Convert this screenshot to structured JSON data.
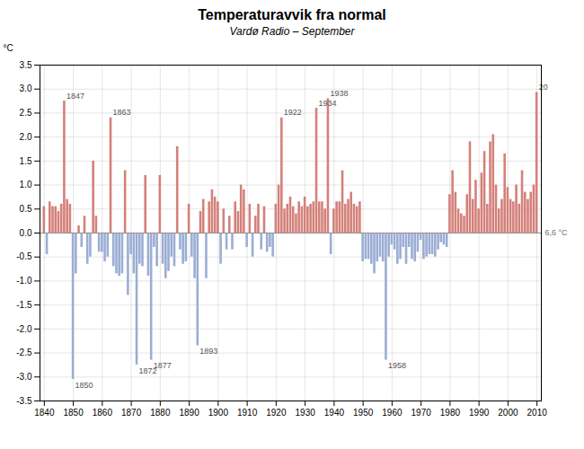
{
  "chart_data": {
    "type": "bar",
    "title": "Temperaturavvik fra normal",
    "subtitle": "Vardø Radio – September",
    "ylabel": "°C",
    "xlim": [
      1838.5,
      2011.5
    ],
    "ylim": [
      -3.5,
      3.5
    ],
    "xticks": [
      1840,
      1850,
      1860,
      1870,
      1880,
      1890,
      1900,
      1910,
      1920,
      1930,
      1940,
      1950,
      1960,
      1970,
      1980,
      1990,
      2000,
      2010
    ],
    "yticks": [
      -3.5,
      {
        "value": -3.0,
        "label": "-3.0"
      },
      -2.5,
      {
        "value": -2.0,
        "label": "-2.0"
      },
      -1.5,
      {
        "value": -1.0,
        "label": "-1.0"
      },
      -0.5,
      {
        "value": 0.0,
        "label": "0.0"
      },
      0.5,
      {
        "value": 1.0,
        "label": "1.0"
      },
      1.5,
      {
        "value": 2.0,
        "label": "2.0"
      },
      2.5,
      {
        "value": 3.0,
        "label": "3.0"
      },
      3.5
    ],
    "grid": true,
    "x": [
      1840,
      1841,
      1842,
      1843,
      1844,
      1845,
      1846,
      1847,
      1848,
      1849,
      1850,
      1851,
      1852,
      1853,
      1854,
      1855,
      1856,
      1857,
      1858,
      1859,
      1860,
      1861,
      1862,
      1863,
      1864,
      1865,
      1866,
      1867,
      1868,
      1869,
      1870,
      1871,
      1872,
      1873,
      1874,
      1875,
      1876,
      1877,
      1878,
      1879,
      1880,
      1881,
      1882,
      1883,
      1884,
      1885,
      1886,
      1887,
      1888,
      1889,
      1890,
      1891,
      1892,
      1893,
      1894,
      1895,
      1896,
      1897,
      1898,
      1899,
      1900,
      1901,
      1902,
      1903,
      1904,
      1905,
      1906,
      1907,
      1908,
      1909,
      1910,
      1911,
      1912,
      1913,
      1914,
      1915,
      1916,
      1917,
      1918,
      1919,
      1920,
      1921,
      1922,
      1923,
      1924,
      1925,
      1926,
      1927,
      1928,
      1929,
      1930,
      1931,
      1932,
      1933,
      1934,
      1935,
      1936,
      1937,
      1938,
      1939,
      1940,
      1941,
      1942,
      1943,
      1944,
      1945,
      1946,
      1947,
      1948,
      1949,
      1950,
      1951,
      1952,
      1953,
      1954,
      1955,
      1956,
      1957,
      1958,
      1959,
      1960,
      1961,
      1962,
      1963,
      1964,
      1965,
      1966,
      1967,
      1968,
      1969,
      1970,
      1971,
      1972,
      1973,
      1974,
      1975,
      1976,
      1977,
      1978,
      1979,
      1980,
      1981,
      1982,
      1983,
      1984,
      1985,
      1986,
      1987,
      1988,
      1989,
      1990,
      1991,
      1992,
      1993,
      1994,
      1995,
      1996,
      1997,
      1998,
      1999,
      2000,
      2001,
      2002,
      2003,
      2004,
      2005,
      2006,
      2007,
      2008,
      2009,
      2010
    ],
    "values": [
      0.55,
      -0.45,
      0.65,
      0.55,
      0.55,
      0.45,
      0.6,
      2.75,
      0.7,
      0.6,
      -3.05,
      -0.85,
      0.15,
      -0.3,
      0.35,
      -0.65,
      -0.5,
      1.5,
      0.35,
      -0.4,
      -0.4,
      -0.6,
      -0.5,
      2.4,
      -0.7,
      -0.85,
      -0.9,
      -0.85,
      1.3,
      -1.3,
      -0.45,
      -0.85,
      -2.75,
      -0.65,
      -0.7,
      1.2,
      -0.9,
      -2.65,
      -0.3,
      -0.7,
      1.2,
      -0.65,
      -0.95,
      -0.8,
      -0.5,
      -0.7,
      1.8,
      -0.35,
      -0.65,
      -0.6,
      0.6,
      -0.5,
      -0.95,
      -2.35,
      0.45,
      0.7,
      -0.95,
      0.65,
      0.9,
      0.75,
      0.65,
      -0.65,
      0.5,
      -0.35,
      0.35,
      -0.35,
      0.65,
      0.45,
      1.0,
      0.9,
      -0.3,
      0.6,
      -0.5,
      0.35,
      0.6,
      -0.35,
      0.55,
      -0.4,
      -0.3,
      -0.5,
      0.6,
      1.0,
      2.4,
      0.5,
      0.6,
      0.75,
      0.55,
      0.4,
      0.65,
      0.55,
      0.75,
      0.55,
      0.6,
      0.65,
      2.6,
      0.65,
      0.65,
      0.5,
      2.8,
      -0.45,
      0.5,
      0.65,
      0.65,
      1.3,
      0.6,
      0.7,
      0.85,
      0.6,
      0.55,
      0.65,
      -0.6,
      -0.55,
      -0.55,
      -0.65,
      -0.85,
      -0.6,
      -0.5,
      -0.6,
      -2.65,
      -0.5,
      -0.25,
      -0.35,
      -0.65,
      -0.55,
      -0.3,
      -0.65,
      -0.3,
      -0.55,
      -0.6,
      -0.4,
      -0.15,
      -0.55,
      -0.5,
      -0.45,
      -0.45,
      -0.5,
      -0.35,
      -0.2,
      -0.25,
      -0.3,
      0.8,
      1.3,
      0.85,
      0.5,
      0.4,
      0.35,
      0.8,
      1.9,
      0.7,
      1.1,
      0.5,
      1.25,
      1.7,
      0.6,
      1.9,
      2.05,
      1.0,
      0.5,
      0.7,
      1.65,
      0.95,
      0.7,
      0.65,
      1.0,
      0.6,
      1.3,
      0.85,
      0.7,
      0.85,
      1.0,
      2.93
    ],
    "colors": [
      "#d4807a",
      "#9badd4",
      "#d4807a",
      "#d4807a",
      "#d4807a",
      "#d4807a",
      "#d4807a",
      "#d4807a",
      "#d4807a",
      "#d4807a",
      "#9badd4",
      "#9badd4",
      "#d4807a",
      "#9badd4",
      "#d4807a",
      "#9badd4",
      "#9badd4",
      "#d4807a",
      "#d4807a",
      "#9badd4",
      "#9badd4",
      "#9badd4",
      "#9badd4",
      "#d4807a",
      "#9badd4",
      "#9badd4",
      "#9badd4",
      "#9badd4",
      "#d4807a",
      "#9badd4",
      "#9badd4",
      "#9badd4",
      "#9badd4",
      "#9badd4",
      "#9badd4",
      "#d4807a",
      "#9badd4",
      "#9badd4",
      "#9badd4",
      "#9badd4",
      "#d4807a",
      "#9badd4",
      "#9badd4",
      "#9badd4",
      "#9badd4",
      "#9badd4",
      "#d4807a",
      "#9badd4",
      "#9badd4",
      "#9badd4",
      "#d4807a",
      "#9badd4",
      "#9badd4",
      "#9badd4",
      "#d4807a",
      "#d4807a",
      "#9badd4",
      "#d4807a",
      "#d4807a",
      "#d4807a",
      "#d4807a",
      "#9badd4",
      "#d4807a",
      "#9badd4",
      "#d4807a",
      "#9badd4",
      "#d4807a",
      "#d4807a",
      "#d4807a",
      "#d4807a",
      "#9badd4",
      "#d4807a",
      "#9badd4",
      "#d4807a",
      "#d4807a",
      "#9badd4",
      "#d4807a",
      "#9badd4",
      "#9badd4",
      "#9badd4",
      "#d4807a",
      "#d4807a",
      "#d4807a",
      "#d4807a",
      "#d4807a",
      "#d4807a",
      "#d4807a",
      "#d4807a",
      "#d4807a",
      "#d4807a",
      "#d4807a",
      "#d4807a",
      "#d4807a",
      "#d4807a",
      "#d4807a",
      "#d4807a",
      "#d4807a",
      "#d4807a",
      "#d4807a",
      "#9badd4",
      "#d4807a",
      "#d4807a",
      "#d4807a",
      "#d4807a",
      "#d4807a",
      "#d4807a",
      "#d4807a",
      "#d4807a",
      "#d4807a",
      "#d4807a",
      "#9badd4",
      "#9badd4",
      "#9badd4",
      "#9badd4",
      "#9badd4",
      "#9badd4",
      "#9badd4",
      "#9badd4",
      "#9badd4",
      "#9badd4",
      "#9badd4",
      "#9badd4",
      "#9badd4",
      "#9badd4",
      "#9badd4",
      "#9badd4",
      "#9badd4",
      "#9badd4",
      "#9badd4",
      "#9badd4",
      "#9badd4",
      "#9badd4",
      "#9badd4",
      "#9badd4",
      "#9badd4",
      "#9badd4",
      "#9badd4",
      "#9badd4",
      "#9badd4",
      "#9badd4",
      "#d4807a",
      "#d4807a",
      "#d4807a",
      "#d4807a",
      "#d4807a",
      "#d4807a",
      "#d4807a",
      "#d4807a",
      "#d4807a",
      "#d4807a",
      "#d4807a",
      "#d4807a",
      "#d4807a",
      "#d4807a",
      "#d4807a",
      "#d4807a",
      "#d4807a",
      "#d4807a",
      "#d4807a",
      "#d4807a",
      "#d4807a",
      "#d4807a",
      "#d4807a",
      "#d4807a",
      "#d4807a",
      "#d4807a",
      "#d4807a",
      "#d4807a",
      "#d4807a",
      "#d4807a",
      "#d4807a"
    ],
    "annotations": [
      {
        "x": 1847,
        "y": 2.75,
        "text": "1847"
      },
      {
        "x": 1863,
        "y": 2.4,
        "text": "1863"
      },
      {
        "x": 1922,
        "y": 2.4,
        "text": "1922"
      },
      {
        "x": 1934,
        "y": 2.6,
        "text": "1934"
      },
      {
        "x": 1938,
        "y": 2.8,
        "text": "1938"
      },
      {
        "x": 2010,
        "y": 2.93,
        "text": "20"
      },
      {
        "x": 1850,
        "y": -3.05,
        "text": "1850"
      },
      {
        "x": 1872,
        "y": -2.75,
        "text": "1872"
      },
      {
        "x": 1877,
        "y": -2.65,
        "text": "1877"
      },
      {
        "x": 1893,
        "y": -2.35,
        "text": "1893"
      },
      {
        "x": 1958,
        "y": -2.65,
        "text": "1958"
      },
      {
        "y": 0.0,
        "text": "6,6 °C"
      }
    ]
  }
}
